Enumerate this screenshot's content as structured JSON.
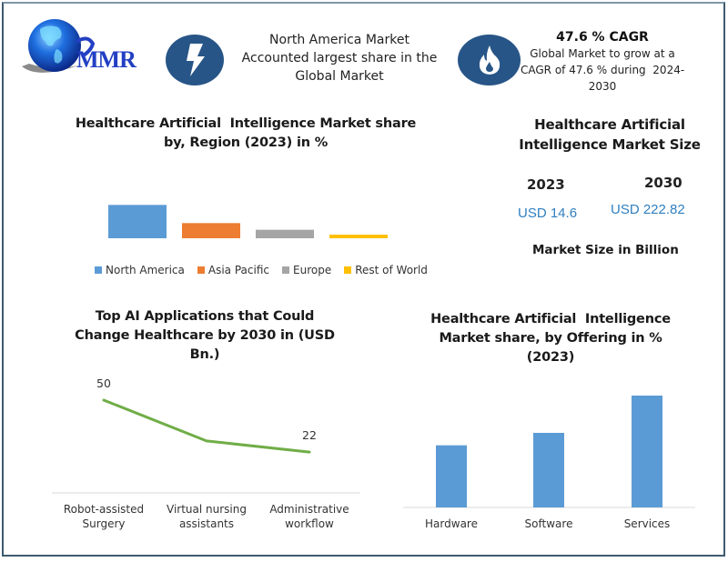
{
  "header": {
    "logo_text": "MMR",
    "highlight_1": {
      "icon": "lightning-bolt-icon",
      "lines": [
        "North America Market",
        "Accounted largest share in the",
        "Global Market"
      ]
    },
    "highlight_2": {
      "icon": "flame-icon",
      "heading": "47.6 % CAGR",
      "lines": [
        "Global Market to grow at a",
        "CAGR of 47.6 % during  2024-",
        "2030"
      ]
    }
  },
  "market_size": {
    "title_lines": [
      "Healthcare Artificial",
      "Intelligence Market Size"
    ],
    "year_1": "2023",
    "value_1": "USD 14.6",
    "year_2": "2030",
    "value_2": "USD 222.82",
    "unit_note": "Market Size in Billion",
    "value_color": "#2f7fc0"
  },
  "chart_data": [
    {
      "type": "bar",
      "title": "Healthcare Artificial  Intelligence Market share by, Region (2023) in %",
      "title_lines": [
        "Healthcare Artificial  Intelligence Market share",
        "by, Region (2023) in %"
      ],
      "categories": [
        "North America",
        "Asia Pacific",
        "Europe",
        "Rest of World"
      ],
      "values": [
        55,
        25,
        14,
        6
      ],
      "colors": [
        "#5b9bd5",
        "#ed7d31",
        "#a5a5a5",
        "#ffc000"
      ],
      "ylim": [
        0,
        60
      ],
      "grid": false,
      "legend": "bottom",
      "xlabel": "",
      "ylabel": ""
    },
    {
      "type": "line",
      "title": "Top AI Applications that Could Change Healthcare by 2030 in (USD Bn.)",
      "title_lines": [
        "Top AI Applications that Could",
        "Change Healthcare by 2030 in (USD",
        "Bn.)"
      ],
      "categories": [
        "Robot-assisted Surgery",
        "Virtual nursing assistants",
        "Administrative workflow"
      ],
      "category_lines": [
        [
          "Robot-assisted",
          "Surgery"
        ],
        [
          "Virtual nursing",
          "assistants"
        ],
        [
          "Administrative",
          "workflow"
        ]
      ],
      "values": [
        50,
        28,
        22
      ],
      "data_labels": [
        "50",
        "",
        "22"
      ],
      "color": "#70ad47",
      "ylim": [
        0,
        53
      ],
      "grid": false,
      "xlabel": "",
      "ylabel": ""
    },
    {
      "type": "bar",
      "title": "Healthcare Artificial  Intelligence Market share, by Offering in % (2023)",
      "title_lines": [
        "Healthcare Artificial  Intelligence",
        "Market share, by Offering in %",
        "(2023)"
      ],
      "categories": [
        "Hardware",
        "Software",
        "Services"
      ],
      "values": [
        25,
        30,
        45
      ],
      "color": "#5b9bd5",
      "ylim": [
        0,
        49
      ],
      "grid": false,
      "xlabel": "",
      "ylabel": ""
    }
  ]
}
